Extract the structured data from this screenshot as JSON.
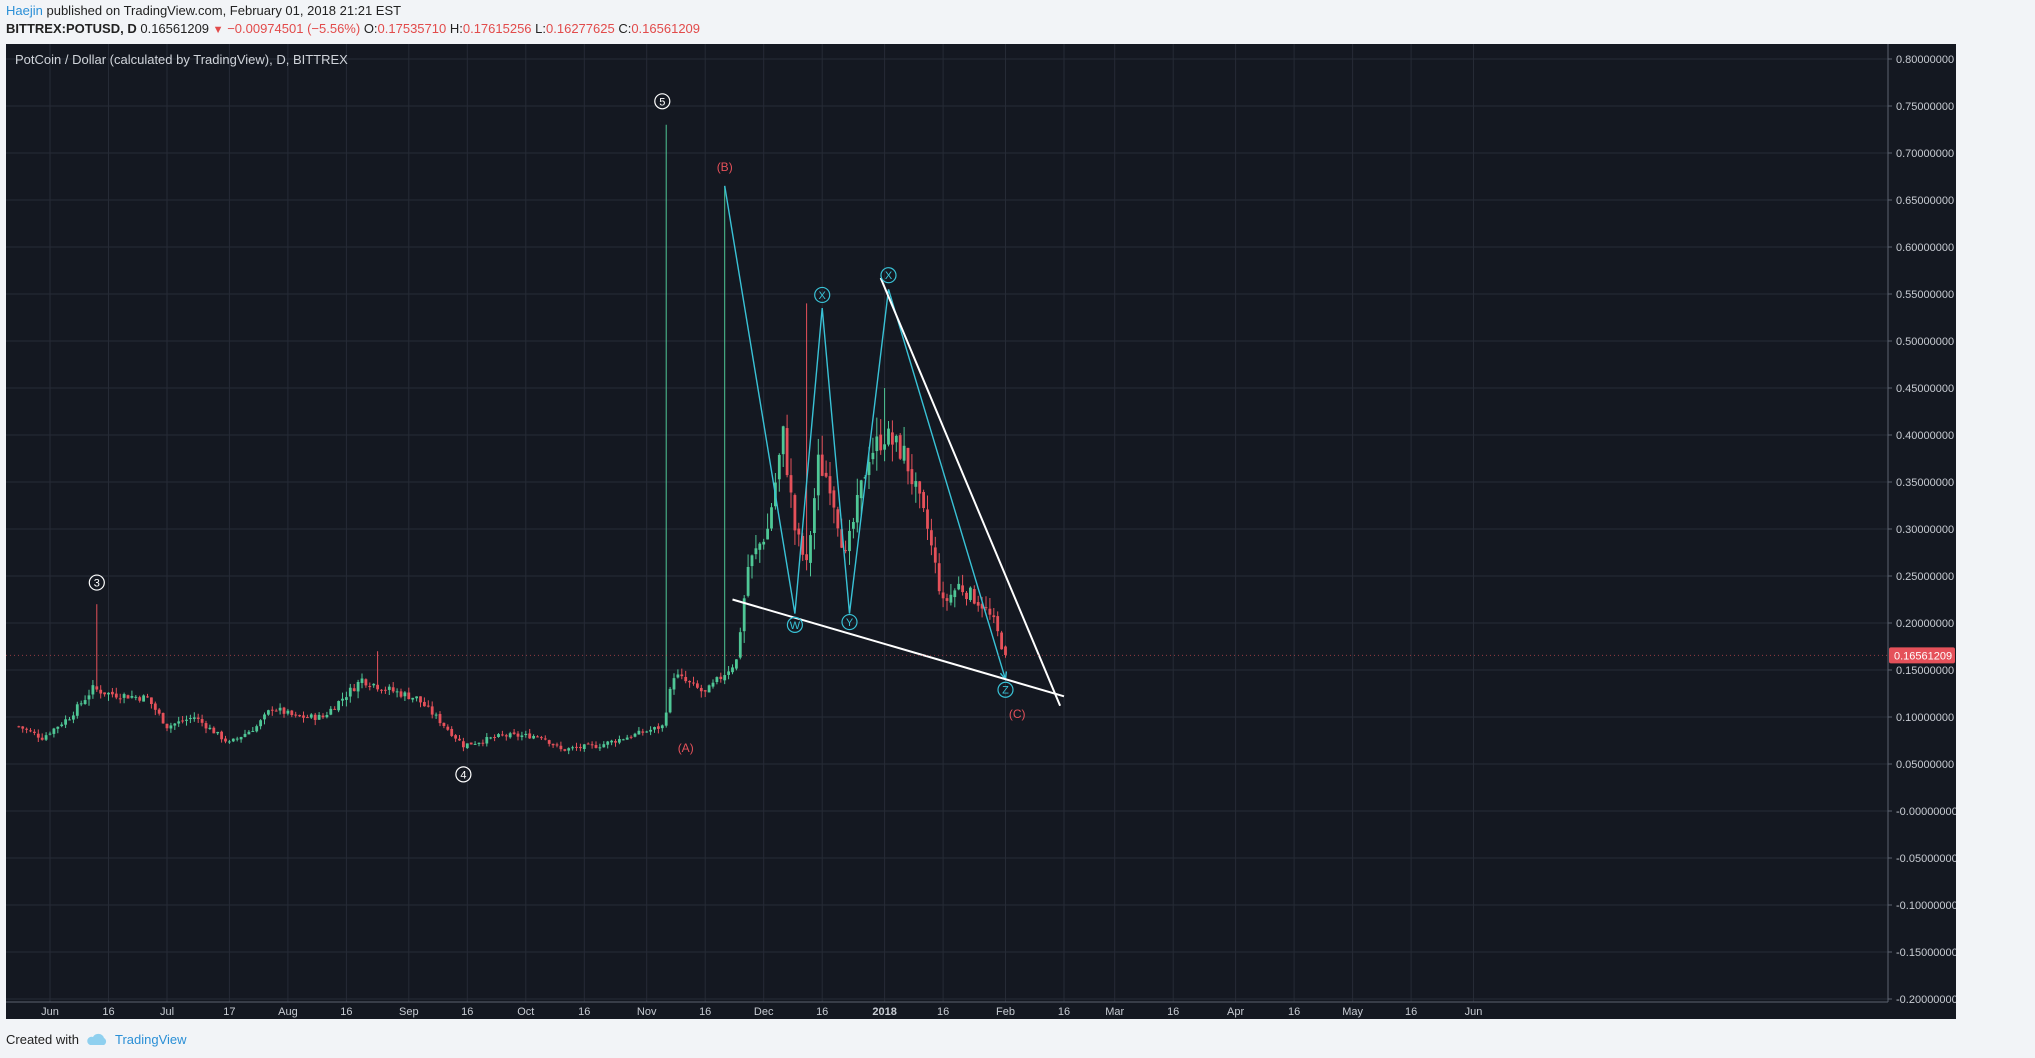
{
  "header": {
    "author": "Haejin",
    "published": "published on TradingView.com, February 01, 2018 21:21 EST",
    "symbol": "BITTREX:POTUSD, D",
    "last": "0.16561209",
    "change": "−0.00974501 (−5.56%)",
    "open_label": "O:",
    "open": "0.17535710",
    "high_label": "H:",
    "high": "0.17615256",
    "low_label": "L:",
    "low": "0.16277625",
    "close_label": "C:",
    "close": "0.16561209"
  },
  "footer": {
    "created_with": "Created with",
    "brand": "TradingView"
  },
  "colors": {
    "background": "#141821",
    "grid": "#262b36",
    "up": "#4fc796",
    "down": "#e5515a",
    "wave": "#39c2d6",
    "trend": "#ffffff",
    "label_red": "#e5515a",
    "axis_text": "#c8ccd3"
  },
  "chart_data": {
    "type": "candlestick",
    "title": "PotCoin / Dollar (calculated by TradingView), D, BITTREX",
    "ylim": [
      -0.2,
      0.8
    ],
    "y_ticks": [
      "0.80000000",
      "0.75000000",
      "0.70000000",
      "0.65000000",
      "0.60000000",
      "0.55000000",
      "0.50000000",
      "0.45000000",
      "0.40000000",
      "0.35000000",
      "0.30000000",
      "0.25000000",
      "0.20000000",
      "0.15000000",
      "0.10000000",
      "0.05000000",
      "-0.00000000",
      "-0.05000000",
      "-0.10000000",
      "-0.15000000",
      "-0.20000000"
    ],
    "x_ticks": [
      {
        "label": "Jun",
        "date": "2017-06-01"
      },
      {
        "label": "16",
        "date": "2017-06-16"
      },
      {
        "label": "Jul",
        "date": "2017-07-01"
      },
      {
        "label": "17",
        "date": "2017-07-17"
      },
      {
        "label": "Aug",
        "date": "2017-08-01"
      },
      {
        "label": "16",
        "date": "2017-08-16"
      },
      {
        "label": "Sep",
        "date": "2017-09-01"
      },
      {
        "label": "16",
        "date": "2017-09-16"
      },
      {
        "label": "Oct",
        "date": "2017-10-01"
      },
      {
        "label": "16",
        "date": "2017-10-16"
      },
      {
        "label": "Nov",
        "date": "2017-11-01"
      },
      {
        "label": "16",
        "date": "2017-11-16"
      },
      {
        "label": "Dec",
        "date": "2017-12-01"
      },
      {
        "label": "16",
        "date": "2017-12-16"
      },
      {
        "label": "2018",
        "date": "2018-01-01"
      },
      {
        "label": "16",
        "date": "2018-01-16"
      },
      {
        "label": "Feb",
        "date": "2018-02-01"
      },
      {
        "label": "16",
        "date": "2018-02-16"
      },
      {
        "label": "Mar",
        "date": "2018-03-01"
      },
      {
        "label": "16",
        "date": "2018-03-16"
      },
      {
        "label": "Apr",
        "date": "2018-04-01"
      },
      {
        "label": "16",
        "date": "2018-04-16"
      },
      {
        "label": "May",
        "date": "2018-05-01"
      },
      {
        "label": "16",
        "date": "2018-05-16"
      },
      {
        "label": "Jun",
        "date": "2018-06-01"
      }
    ],
    "last_price_label": "0.16561209",
    "price_path": [
      {
        "date": "2017-05-24",
        "price": 0.09
      },
      {
        "date": "2017-05-30",
        "price": 0.078
      },
      {
        "date": "2017-06-06",
        "price": 0.1
      },
      {
        "date": "2017-06-12",
        "price": 0.13
      },
      {
        "date": "2017-06-16",
        "price": 0.125
      },
      {
        "date": "2017-06-26",
        "price": 0.12
      },
      {
        "date": "2017-07-01",
        "price": 0.09
      },
      {
        "date": "2017-07-08",
        "price": 0.1
      },
      {
        "date": "2017-07-17",
        "price": 0.072
      },
      {
        "date": "2017-07-24",
        "price": 0.09
      },
      {
        "date": "2017-07-28",
        "price": 0.11
      },
      {
        "date": "2017-08-03",
        "price": 0.1
      },
      {
        "date": "2017-08-10",
        "price": 0.1
      },
      {
        "date": "2017-08-20",
        "price": 0.14
      },
      {
        "date": "2017-08-26",
        "price": 0.13
      },
      {
        "date": "2017-09-03",
        "price": 0.12
      },
      {
        "date": "2017-09-08",
        "price": 0.1
      },
      {
        "date": "2017-09-15",
        "price": 0.07
      },
      {
        "date": "2017-09-25",
        "price": 0.08
      },
      {
        "date": "2017-10-05",
        "price": 0.08
      },
      {
        "date": "2017-10-10",
        "price": 0.065
      },
      {
        "date": "2017-10-20",
        "price": 0.07
      },
      {
        "date": "2017-10-28",
        "price": 0.08
      },
      {
        "date": "2017-11-05",
        "price": 0.09
      },
      {
        "date": "2017-11-08",
        "price": 0.145
      },
      {
        "date": "2017-11-16",
        "price": 0.125
      },
      {
        "date": "2017-11-24",
        "price": 0.16
      },
      {
        "date": "2017-11-27",
        "price": 0.26
      },
      {
        "date": "2017-12-02",
        "price": 0.3
      },
      {
        "date": "2017-12-06",
        "price": 0.4
      },
      {
        "date": "2017-12-09",
        "price": 0.3
      },
      {
        "date": "2017-12-12",
        "price": 0.26
      },
      {
        "date": "2017-12-15",
        "price": 0.37
      },
      {
        "date": "2017-12-18",
        "price": 0.35
      },
      {
        "date": "2017-12-22",
        "price": 0.27
      },
      {
        "date": "2017-12-28",
        "price": 0.38
      },
      {
        "date": "2018-01-01",
        "price": 0.4
      },
      {
        "date": "2018-01-06",
        "price": 0.38
      },
      {
        "date": "2018-01-12",
        "price": 0.3
      },
      {
        "date": "2018-01-16",
        "price": 0.22
      },
      {
        "date": "2018-01-20",
        "price": 0.24
      },
      {
        "date": "2018-01-26",
        "price": 0.22
      },
      {
        "date": "2018-01-29",
        "price": 0.2
      },
      {
        "date": "2018-02-01",
        "price": 0.166
      }
    ],
    "spikes": [
      {
        "date": "2017-06-13",
        "high": 0.22
      },
      {
        "date": "2017-08-24",
        "high": 0.17
      },
      {
        "date": "2017-11-06",
        "high": 0.73
      },
      {
        "date": "2017-11-21",
        "high": 0.665
      },
      {
        "date": "2017-12-12",
        "high": 0.54
      },
      {
        "date": "2018-01-01",
        "high": 0.45
      }
    ],
    "wave_path": [
      {
        "date": "2017-11-21",
        "price": 0.665
      },
      {
        "date": "2017-12-09",
        "price": 0.21
      },
      {
        "date": "2017-12-16",
        "price": 0.535
      },
      {
        "date": "2017-12-23",
        "price": 0.21
      },
      {
        "date": "2018-01-02",
        "price": 0.555
      },
      {
        "date": "2018-02-01",
        "price": 0.14
      }
    ],
    "trendlines": [
      {
        "from": {
          "date": "2017-11-23",
          "price": 0.225
        },
        "to": {
          "date": "2018-02-16",
          "price": 0.122
        }
      },
      {
        "from": {
          "date": "2017-12-31",
          "price": 0.567
        },
        "to": {
          "date": "2018-02-15",
          "price": 0.112
        }
      }
    ],
    "annotations": [
      {
        "text": "3",
        "date": "2017-06-13",
        "price": 0.243,
        "style": "circle",
        "color": "white"
      },
      {
        "text": "4",
        "date": "2017-09-15",
        "price": 0.039,
        "style": "circle",
        "color": "white"
      },
      {
        "text": "5",
        "date": "2017-11-05",
        "price": 0.755,
        "style": "circle",
        "color": "white"
      },
      {
        "text": "(B)",
        "date": "2017-11-21",
        "price": 0.685,
        "style": "text",
        "color": "red"
      },
      {
        "text": "(A)",
        "date": "2017-11-11",
        "price": 0.067,
        "style": "text",
        "color": "red"
      },
      {
        "text": "(C)",
        "date": "2018-02-04",
        "price": 0.103,
        "style": "text",
        "color": "red"
      },
      {
        "text": "W",
        "date": "2017-12-09",
        "price": 0.198,
        "style": "circle",
        "color": "cyan"
      },
      {
        "text": "X",
        "date": "2017-12-16",
        "price": 0.549,
        "style": "circle",
        "color": "cyan"
      },
      {
        "text": "Y",
        "date": "2017-12-23",
        "price": 0.201,
        "style": "circle",
        "color": "cyan"
      },
      {
        "text": "X",
        "date": "2018-01-02",
        "price": 0.57,
        "style": "circle",
        "color": "cyan"
      },
      {
        "text": "Z",
        "date": "2018-02-01",
        "price": 0.129,
        "style": "circle",
        "color": "cyan"
      }
    ]
  }
}
